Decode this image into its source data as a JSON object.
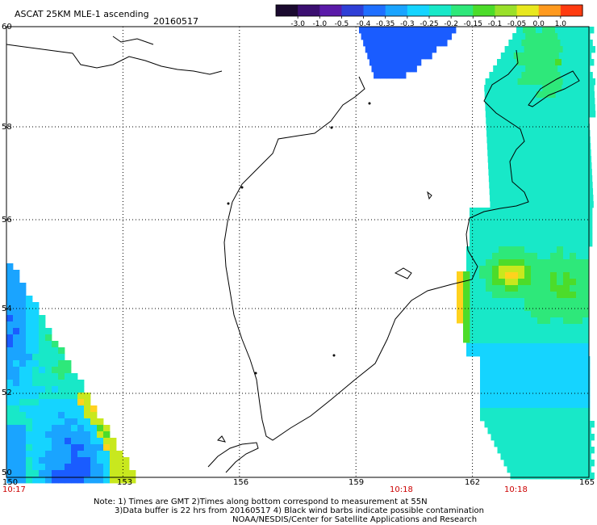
{
  "header": {
    "title": "ASCAT 25KM MLE-1 ascending",
    "date": "20160517"
  },
  "colorbar": {
    "labels": [
      "-3.0",
      "-1.0",
      "-0.5",
      "-0.4",
      "-0.35",
      "-0.3",
      "-0.25",
      "-0.2",
      "-0.15",
      "-0.1",
      "-0.05",
      "0.0",
      "1.0"
    ],
    "colors": [
      "#1a0a2e",
      "#3b0f70",
      "#5a1aa8",
      "#2f3fd6",
      "#1f6fff",
      "#1aa4ff",
      "#15d4ff",
      "#18e8c8",
      "#2ee87a",
      "#4cdc2a",
      "#9ae02a",
      "#e8e81e",
      "#ff9a1e",
      "#ff3b10"
    ]
  },
  "map": {
    "lon_labels": [
      "150",
      "153",
      "156",
      "159",
      "162",
      "165"
    ],
    "lat_labels": [
      "60",
      "58",
      "56",
      "54",
      "52",
      "50"
    ],
    "times": [
      "10:17",
      "10:18",
      "10:18"
    ]
  },
  "footer": {
    "line1": "Note: 1) Times are GMT 2)Times along bottom correspond to measurement at 55N",
    "line2": "3)Data buffer is 22 hrs from 20160517 4) Black wind barbs indicate possible contamination",
    "line3": "NOAA/NESDIS/Center for Satellite Applications and Research"
  }
}
